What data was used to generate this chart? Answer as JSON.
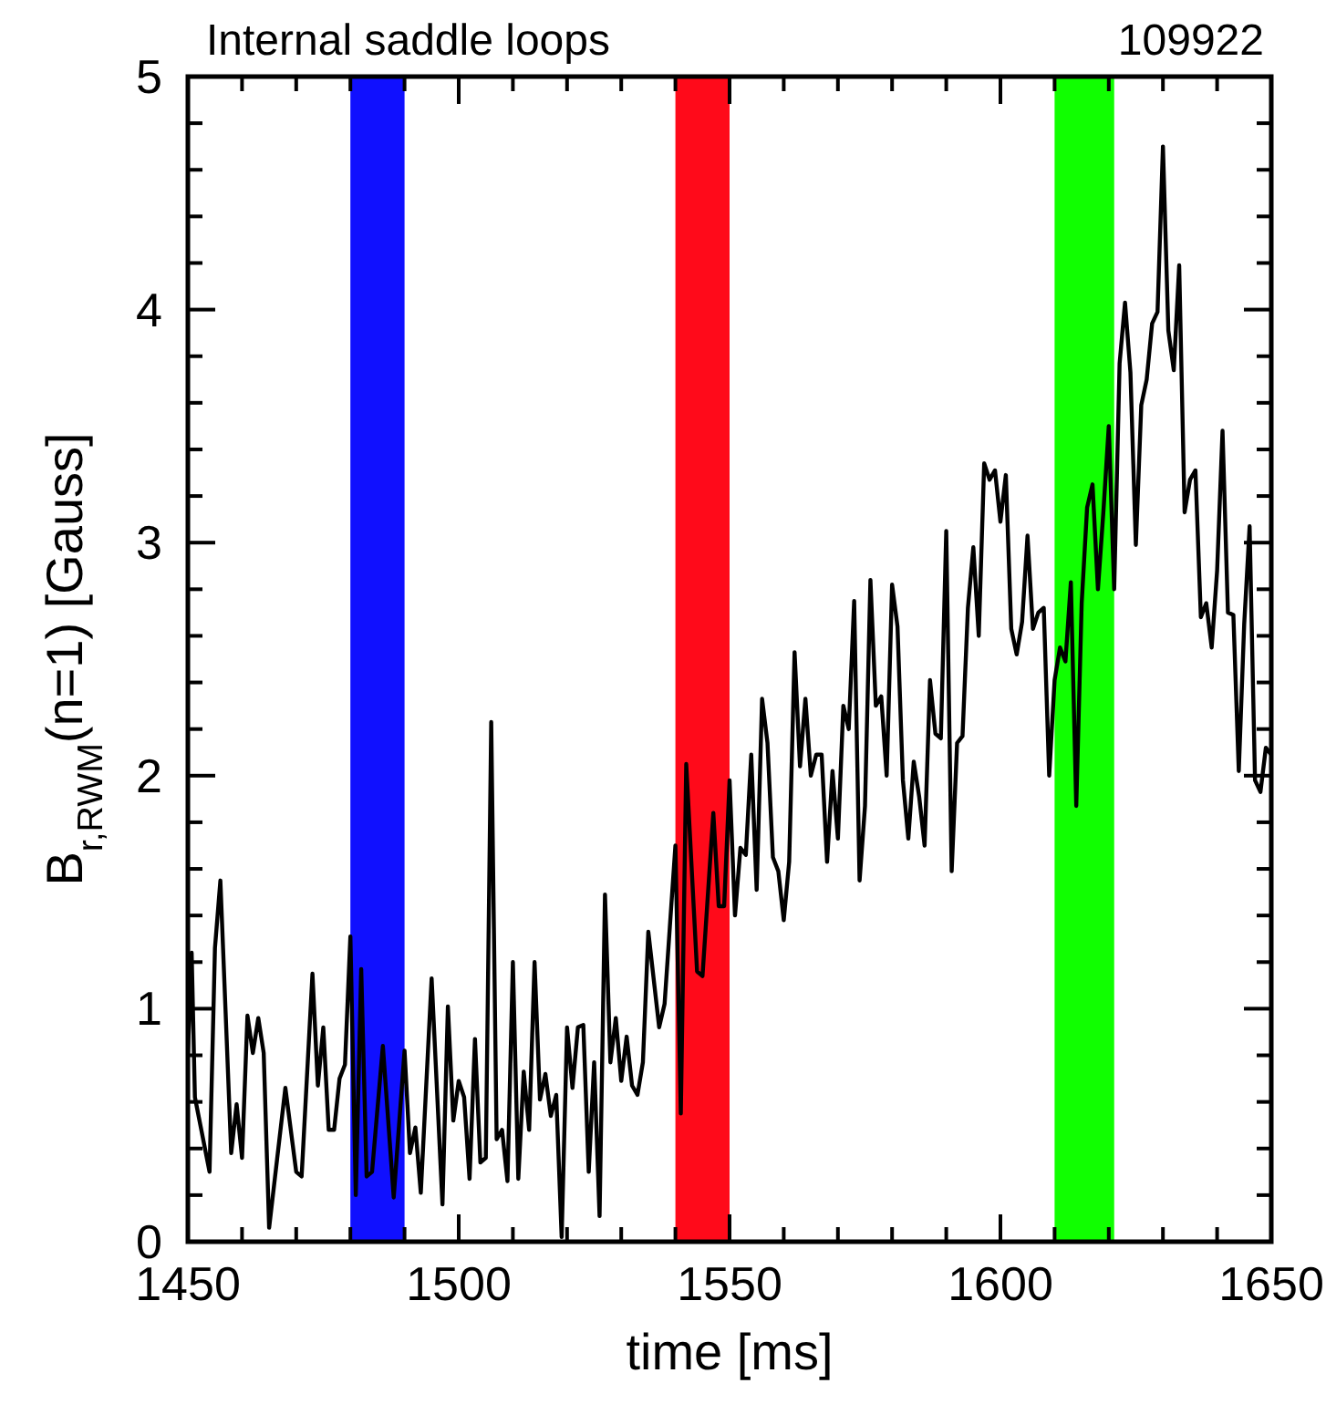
{
  "chart_data": {
    "type": "line",
    "title": "Internal saddle loops",
    "annotations": [
      "109922"
    ],
    "xlabel": "time [ms]",
    "ylabel": "B$_{r,RWM}$(n=1) [Gauss]",
    "x": [
      1450,
      1450.7,
      1451.3,
      1454,
      1455,
      1456,
      1458,
      1459,
      1460,
      1461,
      1462,
      1463,
      1464,
      1465,
      1468,
      1470,
      1471,
      1473,
      1474,
      1475,
      1476,
      1477,
      1478,
      1479,
      1480,
      1481,
      1482,
      1483,
      1484,
      1486,
      1488,
      1490,
      1491,
      1492,
      1493,
      1495,
      1497,
      1498,
      1499,
      1500,
      1501,
      1502,
      1503,
      1504,
      1505,
      1506,
      1507,
      1508,
      1509,
      1510,
      1511,
      1512,
      1513,
      1514,
      1515,
      1516,
      1517,
      1518,
      1519,
      1520,
      1521,
      1522,
      1523,
      1524,
      1525,
      1526,
      1527,
      1528,
      1529,
      1530,
      1531,
      1532,
      1533,
      1534,
      1535,
      1537,
      1538,
      1540,
      1541,
      1542,
      1544,
      1545,
      1547,
      1548,
      1549,
      1550,
      1551,
      1552,
      1553,
      1554,
      1555,
      1556,
      1557,
      1558,
      1559,
      1560,
      1561,
      1562,
      1563,
      1564,
      1565,
      1566,
      1567,
      1568,
      1569,
      1570,
      1571,
      1572,
      1573,
      1574,
      1575,
      1576,
      1577,
      1578,
      1579,
      1580,
      1581,
      1582,
      1583,
      1584,
      1585,
      1586,
      1587,
      1588,
      1589,
      1590,
      1591,
      1592,
      1593,
      1594,
      1595,
      1596,
      1597,
      1598,
      1599,
      1600,
      1601,
      1602,
      1603,
      1604,
      1605,
      1606,
      1607,
      1608,
      1609,
      1610,
      1611,
      1612,
      1613,
      1614,
      1615,
      1616,
      1617,
      1618,
      1619,
      1620,
      1621,
      1622,
      1623,
      1624,
      1625,
      1626,
      1627,
      1628,
      1629,
      1630,
      1631,
      1632,
      1633,
      1634,
      1635,
      1636,
      1637,
      1638,
      1639,
      1640,
      1641,
      1642,
      1643,
      1644,
      1645,
      1646,
      1647,
      1648,
      1649,
      1650
    ],
    "series": [
      {
        "color": "#000000",
        "values": [
          0.8,
          1.24,
          0.62,
          0.3,
          1.26,
          1.55,
          0.38,
          0.59,
          0.36,
          0.97,
          0.81,
          0.96,
          0.81,
          0.06,
          0.66,
          0.3,
          0.28,
          1.15,
          0.67,
          0.92,
          0.48,
          0.48,
          0.7,
          0.76,
          1.31,
          0.2,
          1.17,
          0.28,
          0.3,
          0.84,
          0.19,
          0.82,
          0.38,
          0.49,
          0.21,
          1.13,
          0.16,
          1.01,
          0.52,
          0.69,
          0.62,
          0.27,
          0.87,
          0.34,
          0.36,
          2.23,
          0.44,
          0.48,
          0.26,
          1.2,
          0.27,
          0.73,
          0.48,
          1.2,
          0.61,
          0.72,
          0.54,
          0.63,
          0.02,
          0.92,
          0.66,
          0.92,
          0.93,
          0.3,
          0.77,
          0.11,
          1.49,
          0.77,
          0.96,
          0.69,
          0.88,
          0.67,
          0.63,
          0.77,
          1.33,
          0.92,
          1.02,
          1.7,
          0.55,
          2.05,
          1.16,
          1.14,
          1.84,
          1.44,
          1.44,
          1.98,
          1.4,
          1.69,
          1.66,
          2.09,
          1.51,
          2.33,
          2.14,
          1.65,
          1.59,
          1.38,
          1.63,
          2.53,
          2.04,
          2.33,
          2.0,
          2.09,
          2.09,
          1.63,
          2.02,
          1.73,
          2.3,
          2.2,
          2.75,
          1.55,
          1.87,
          2.84,
          2.3,
          2.34,
          2.0,
          2.82,
          2.64,
          1.98,
          1.73,
          2.06,
          1.91,
          1.7,
          2.41,
          2.18,
          2.16,
          3.05,
          1.59,
          2.14,
          2.17,
          2.72,
          2.98,
          2.6,
          3.34,
          3.27,
          3.31,
          3.09,
          3.29,
          2.63,
          2.52,
          2.66,
          3.03,
          2.63,
          2.7,
          2.72,
          2.0,
          2.41,
          2.55,
          2.49,
          2.83,
          1.87,
          2.74,
          3.15,
          3.25,
          2.8,
          3.13,
          3.5,
          2.8,
          3.77,
          4.03,
          3.73,
          2.99,
          3.59,
          3.7,
          3.94,
          3.99,
          4.7,
          3.91,
          3.74,
          4.19,
          3.13,
          3.27,
          3.31,
          2.68,
          2.74,
          2.55,
          2.88,
          3.48,
          2.7,
          2.69,
          2.02,
          2.65,
          3.07,
          1.98,
          1.93,
          2.12,
          2.09
        ]
      }
    ],
    "xlim": [
      1450,
      1650
    ],
    "xticks": [
      1450,
      {
        "value": 1460,
        "label": null
      },
      {
        "value": 1470,
        "label": null
      },
      {
        "value": 1480,
        "label": null
      },
      {
        "value": 1490,
        "label": null
      },
      1500,
      {
        "value": 1510,
        "label": null
      },
      {
        "value": 1520,
        "label": null
      },
      {
        "value": 1530,
        "label": null
      },
      {
        "value": 1540,
        "label": null
      },
      1550,
      {
        "value": 1560,
        "label": null
      },
      {
        "value": 1570,
        "label": null
      },
      {
        "value": 1580,
        "label": null
      },
      {
        "value": 1590,
        "label": null
      },
      1600,
      {
        "value": 1610,
        "label": null
      },
      {
        "value": 1620,
        "label": null
      },
      {
        "value": 1630,
        "label": null
      },
      {
        "value": 1640,
        "label": null
      },
      1650
    ],
    "ylim": [
      0,
      5
    ],
    "yticks": [
      0,
      {
        "value": 0.2,
        "label": null
      },
      {
        "value": 0.4,
        "label": null
      },
      {
        "value": 0.6,
        "label": null
      },
      {
        "value": 0.8,
        "label": null
      },
      1,
      {
        "value": 1.2,
        "label": null
      },
      {
        "value": 1.4,
        "label": null
      },
      {
        "value": 1.6,
        "label": null
      },
      {
        "value": 1.8,
        "label": null
      },
      2,
      {
        "value": 2.2,
        "label": null
      },
      {
        "value": 2.4,
        "label": null
      },
      {
        "value": 2.6,
        "label": null
      },
      {
        "value": 2.8,
        "label": null
      },
      3,
      {
        "value": 3.2,
        "label": null
      },
      {
        "value": 3.4,
        "label": null
      },
      {
        "value": 3.6,
        "label": null
      },
      {
        "value": 3.8,
        "label": null
      },
      4,
      {
        "value": 4.2,
        "label": null
      },
      {
        "value": 4.4,
        "label": null
      },
      {
        "value": 4.6,
        "label": null
      },
      {
        "value": 4.8,
        "label": null
      },
      5
    ],
    "bands": [
      {
        "axis": "x",
        "from": 1480,
        "to": 1490,
        "color": "#1010ff"
      },
      {
        "axis": "x",
        "from": 1540,
        "to": 1550,
        "color": "#ff0a1a"
      },
      {
        "axis": "x",
        "from": 1610,
        "to": 1621,
        "color": "#10ff00"
      }
    ],
    "grid": false,
    "line_style": "solid",
    "marker": "none"
  }
}
